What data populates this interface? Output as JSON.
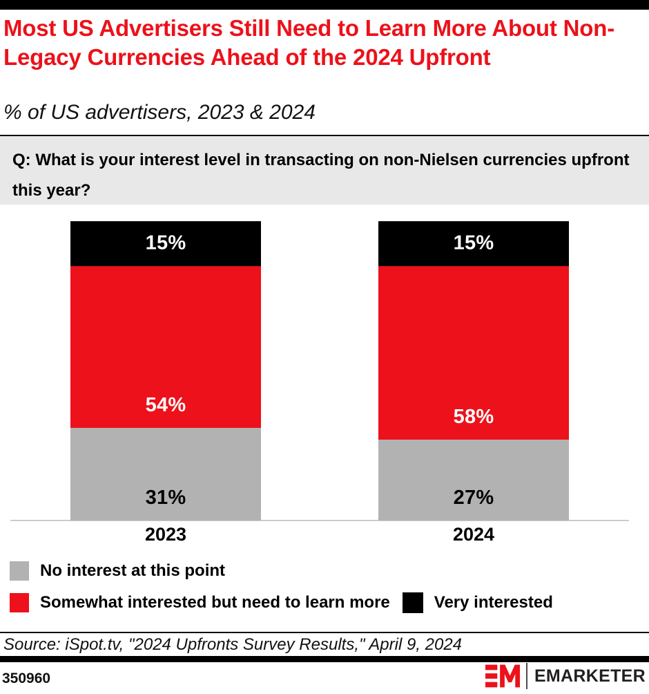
{
  "header": {
    "title": "Most US Advertisers Still Need to Learn More About Non-Legacy Currencies Ahead of the 2024 Upfront",
    "subtitle": "% of US advertisers, 2023 & 2024"
  },
  "question": "Q: What is your interest level in transacting on non-Nielsen currencies upfront this year?",
  "chart_data": {
    "type": "bar",
    "stacked": true,
    "categories": [
      "2023",
      "2024"
    ],
    "series": [
      {
        "name": "No interest at this point",
        "color": "#B2B2B2",
        "label_color": "#000000",
        "label_position": "bottom",
        "values": [
          31,
          27
        ]
      },
      {
        "name": "Somewhat interested but need to learn more",
        "color": "#EC111A",
        "label_color": "#FFFFFF",
        "label_position": "bottom",
        "values": [
          54,
          58
        ]
      },
      {
        "name": "Very interested",
        "color": "#000000",
        "label_color": "#FFFFFF",
        "label_position": "center",
        "values": [
          15,
          15
        ]
      }
    ],
    "value_suffix": "%",
    "ylim": [
      0,
      100
    ],
    "grid": false,
    "legend_position": "bottom",
    "title": "Most US Advertisers Still Need to Learn More About Non-Legacy Currencies Ahead of the 2024 Upfront",
    "xlabel": "",
    "ylabel": "% of US advertisers"
  },
  "source": "Source: iSpot.tv, \"2024 Upfronts Survey Results,\" April 9, 2024",
  "footer": {
    "chart_id": "350960",
    "brand": "EMARKETER"
  },
  "colors": {
    "accent_red": "#EC111A",
    "bar_gray": "#B2B2B2",
    "bar_black": "#000000",
    "question_bg": "#E8E8E8",
    "axis_line": "#CBCBCB",
    "top_bar": "#000000",
    "wordmark_text": "#231F20"
  }
}
